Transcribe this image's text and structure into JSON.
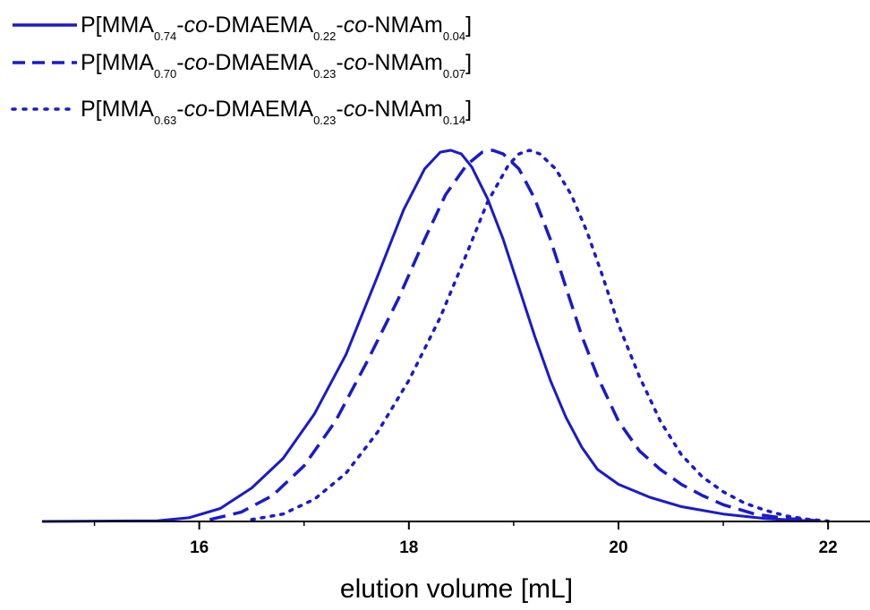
{
  "chart_data": {
    "type": "line",
    "title": "",
    "xlabel": "elution volume [mL]",
    "ylabel": "",
    "xlim": [
      14.5,
      22.4
    ],
    "ylim": [
      0,
      1.0
    ],
    "xticks": [
      16,
      18,
      20,
      22
    ],
    "xtick_labels": [
      "16",
      "18",
      "20",
      "22"
    ],
    "grid": false,
    "legend_position": "top-left",
    "color": "#1a1acc",
    "series": [
      {
        "name": "P[MMA0.74-co-DMAEMA0.22-co-NMAm0.04]",
        "legend": [
          {
            "t": "P[MMA",
            "s": "n"
          },
          {
            "t": "0.74",
            "s": "sub"
          },
          {
            "t": "-",
            "s": "n"
          },
          {
            "t": "co",
            "s": "i"
          },
          {
            "t": "-DMAEMA",
            "s": "n"
          },
          {
            "t": "0.22",
            "s": "sub"
          },
          {
            "t": "-",
            "s": "n"
          },
          {
            "t": "co",
            "s": "i"
          },
          {
            "t": "-NMAm",
            "s": "n"
          },
          {
            "t": "0.04",
            "s": "sub"
          },
          {
            "t": "]",
            "s": "n"
          }
        ],
        "style": "solid",
        "x": [
          14.5,
          15.6,
          15.9,
          16.2,
          16.5,
          16.8,
          17.1,
          17.4,
          17.7,
          17.95,
          18.15,
          18.3,
          18.4,
          18.5,
          18.6,
          18.75,
          18.9,
          19.05,
          19.2,
          19.35,
          19.5,
          19.65,
          19.8,
          20.0,
          20.3,
          20.6,
          21.0,
          21.4,
          21.8
        ],
        "y": [
          0.0,
          0.002,
          0.01,
          0.035,
          0.09,
          0.17,
          0.29,
          0.45,
          0.66,
          0.84,
          0.95,
          0.995,
          1.0,
          0.99,
          0.955,
          0.87,
          0.76,
          0.63,
          0.5,
          0.38,
          0.28,
          0.2,
          0.14,
          0.1,
          0.065,
          0.04,
          0.02,
          0.008,
          0.002
        ]
      },
      {
        "name": "P[MMA0.70-co-DMAEMA0.23-co-NMAm0.07]",
        "legend": [
          {
            "t": "P[MMA",
            "s": "n"
          },
          {
            "t": "0.70",
            "s": "sub"
          },
          {
            "t": "-",
            "s": "n"
          },
          {
            "t": "co",
            "s": "i"
          },
          {
            "t": "-DMAEMA",
            "s": "n"
          },
          {
            "t": "0.23",
            "s": "sub"
          },
          {
            "t": "-",
            "s": "n"
          },
          {
            "t": "co",
            "s": "i"
          },
          {
            "t": "-NMAm",
            "s": "n"
          },
          {
            "t": "0.07",
            "s": "sub"
          },
          {
            "t": "]",
            "s": "n"
          }
        ],
        "style": "dashed",
        "x": [
          16.1,
          16.4,
          16.7,
          17.0,
          17.3,
          17.6,
          17.9,
          18.15,
          18.35,
          18.55,
          18.7,
          18.8,
          18.9,
          19.05,
          19.2,
          19.35,
          19.5,
          19.65,
          19.8,
          20.0,
          20.2,
          20.4,
          20.6,
          20.8,
          21.0,
          21.3,
          21.6,
          21.9
        ],
        "y": [
          0.005,
          0.025,
          0.07,
          0.15,
          0.27,
          0.43,
          0.6,
          0.76,
          0.88,
          0.96,
          0.995,
          1.0,
          0.99,
          0.95,
          0.87,
          0.76,
          0.63,
          0.5,
          0.39,
          0.27,
          0.19,
          0.14,
          0.1,
          0.07,
          0.045,
          0.02,
          0.008,
          0.002
        ]
      },
      {
        "name": "P[MMA0.63-co-DMAEMA0.23-co-NMAm0.14]",
        "legend": [
          {
            "t": "P[MMA",
            "s": "n"
          },
          {
            "t": "0.63",
            "s": "sub"
          },
          {
            "t": "-",
            "s": "n"
          },
          {
            "t": "co",
            "s": "i"
          },
          {
            "t": "-DMAEMA",
            "s": "n"
          },
          {
            "t": "0.23",
            "s": "sub"
          },
          {
            "t": "-",
            "s": "n"
          },
          {
            "t": "co",
            "s": "i"
          },
          {
            "t": "-NMAm",
            "s": "n"
          },
          {
            "t": "0.14",
            "s": "sub"
          },
          {
            "t": "]",
            "s": "n"
          }
        ],
        "style": "dotted",
        "x": [
          16.5,
          16.8,
          17.1,
          17.4,
          17.7,
          18.0,
          18.3,
          18.55,
          18.75,
          18.95,
          19.05,
          19.15,
          19.25,
          19.4,
          19.55,
          19.7,
          19.85,
          20.0,
          20.2,
          20.4,
          20.6,
          20.8,
          21.0,
          21.2,
          21.4,
          21.6,
          21.8,
          22.0
        ],
        "y": [
          0.005,
          0.02,
          0.06,
          0.13,
          0.24,
          0.38,
          0.55,
          0.72,
          0.86,
          0.96,
          0.99,
          1.0,
          0.99,
          0.95,
          0.88,
          0.78,
          0.66,
          0.53,
          0.39,
          0.27,
          0.18,
          0.12,
          0.08,
          0.05,
          0.03,
          0.015,
          0.006,
          0.001
        ]
      }
    ]
  }
}
